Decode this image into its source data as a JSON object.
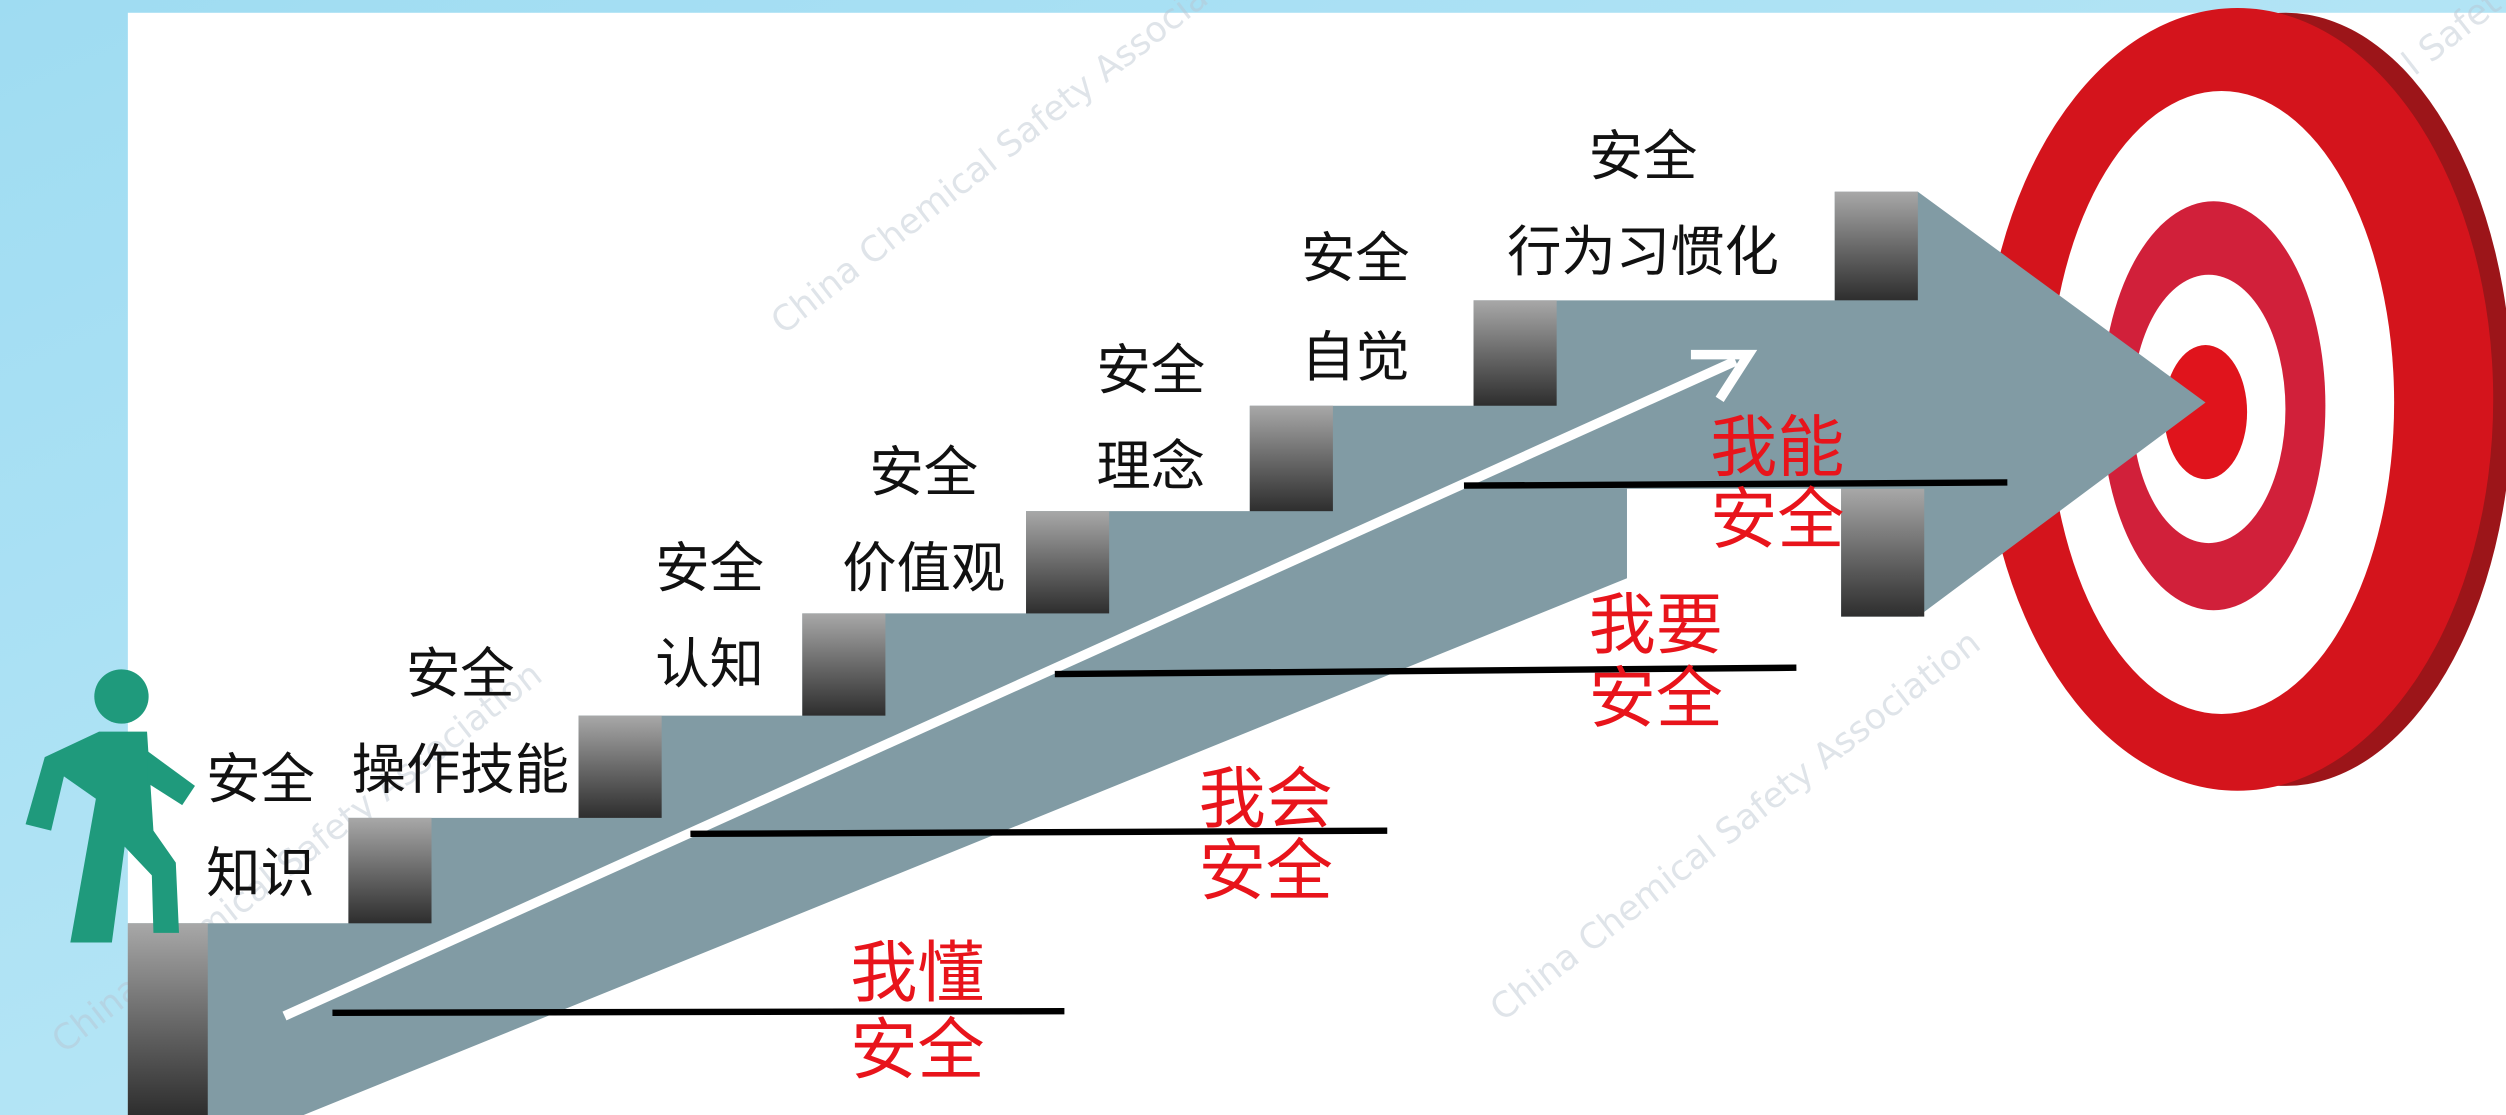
{
  "steps": [
    {
      "line1": "安全",
      "line2": "知识"
    },
    {
      "line1": "安全",
      "line2": "操作技能"
    },
    {
      "line1": "安全",
      "line2": "认知"
    },
    {
      "line1": "安全",
      "line2": "价值观"
    },
    {
      "line1": "安全",
      "line2": "理念"
    },
    {
      "line1": "安全",
      "line2": "自觉"
    },
    {
      "line1": "安全",
      "line2": "行为习惯化"
    }
  ],
  "goals": [
    {
      "line1": "我懂",
      "line2": "安全"
    },
    {
      "line1": "我会",
      "line2": "安全"
    },
    {
      "line1": "我要",
      "line2": "安全"
    },
    {
      "line1": "我能",
      "line2": "安全"
    }
  ],
  "watermark": "China Chemical Safety Association"
}
